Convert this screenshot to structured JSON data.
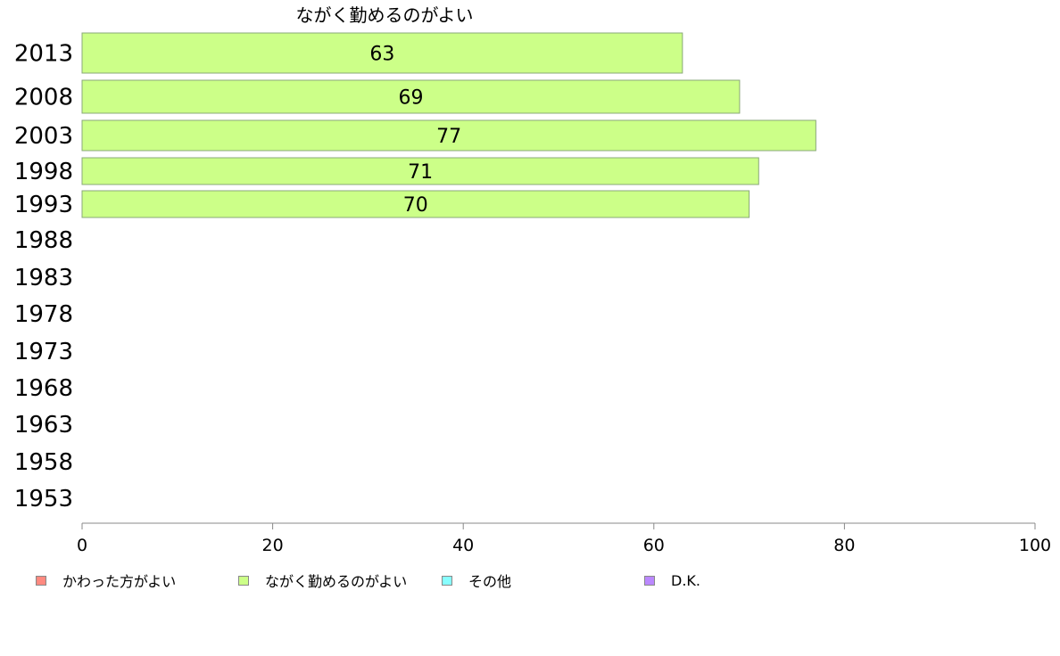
{
  "chart_data": {
    "type": "bar",
    "orientation": "horizontal",
    "title": "ながく勤めるのがよい",
    "categories": [
      "2013",
      "2008",
      "2003",
      "1998",
      "1993",
      "1988",
      "1983",
      "1978",
      "1973",
      "1968",
      "1963",
      "1958",
      "1953"
    ],
    "series": [
      {
        "name": "ながく勤めるのがよい",
        "color": "#ccff88",
        "values": [
          63,
          69,
          77,
          71,
          70,
          null,
          null,
          null,
          null,
          null,
          null,
          null,
          null
        ]
      }
    ],
    "data_labels": [
      "63",
      "69",
      "77",
      "71",
      "70"
    ],
    "xlim": [
      0,
      100
    ],
    "xticks": [
      0,
      20,
      40,
      60,
      80,
      100
    ],
    "xlabel": "",
    "ylabel": "",
    "grid": false,
    "legend": {
      "placement": "bottom",
      "items": [
        {
          "label": "かわった方がよい",
          "color": "#ff8a80"
        },
        {
          "label": "ながく勤めるのがよい",
          "color": "#ccff88"
        },
        {
          "label": "その他",
          "color": "#88ffff"
        },
        {
          "label": "D.K.",
          "color": "#bb88ff"
        }
      ]
    }
  }
}
